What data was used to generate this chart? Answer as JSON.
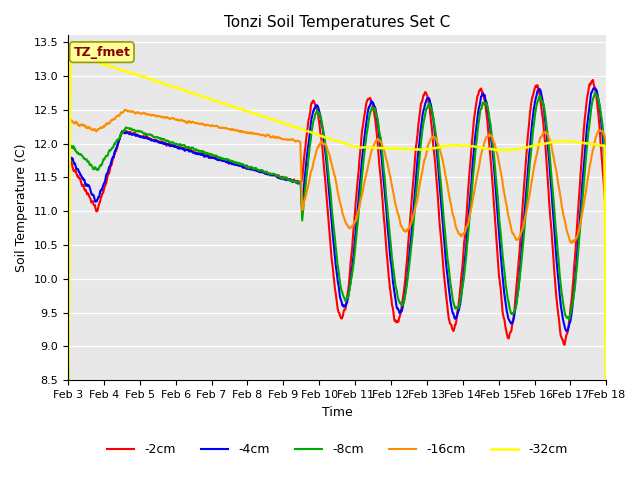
{
  "title": "Tonzi Soil Temperatures Set C",
  "xlabel": "Time",
  "ylabel": "Soil Temperature (C)",
  "ylim": [
    8.5,
    13.6
  ],
  "annotation_text": "TZ_fmet",
  "annotation_color": "#8B0000",
  "annotation_bg": "#FFFF99",
  "bg_color": "#E8E8E8",
  "legend_labels": [
    "-2cm",
    "-4cm",
    "-8cm",
    "-16cm",
    "-32cm"
  ],
  "line_colors": [
    "#FF0000",
    "#0000FF",
    "#00AA00",
    "#FF8C00",
    "#FFFF00"
  ],
  "line_widths": [
    1.5,
    1.5,
    1.5,
    1.5,
    1.8
  ],
  "xtick_labels": [
    "Feb 3",
    "Feb 4",
    "Feb 5",
    "Feb 6",
    "Feb 7",
    "Feb 8",
    "Feb 9",
    "Feb 10",
    "Feb 11",
    "Feb 12",
    "Feb 13",
    "Feb 14",
    "Feb 15",
    "Feb 16",
    "Feb 17",
    "Feb 18"
  ],
  "ytick_vals": [
    8.5,
    9.0,
    9.5,
    10.0,
    10.5,
    11.0,
    11.5,
    12.0,
    12.5,
    13.0,
    13.5
  ]
}
